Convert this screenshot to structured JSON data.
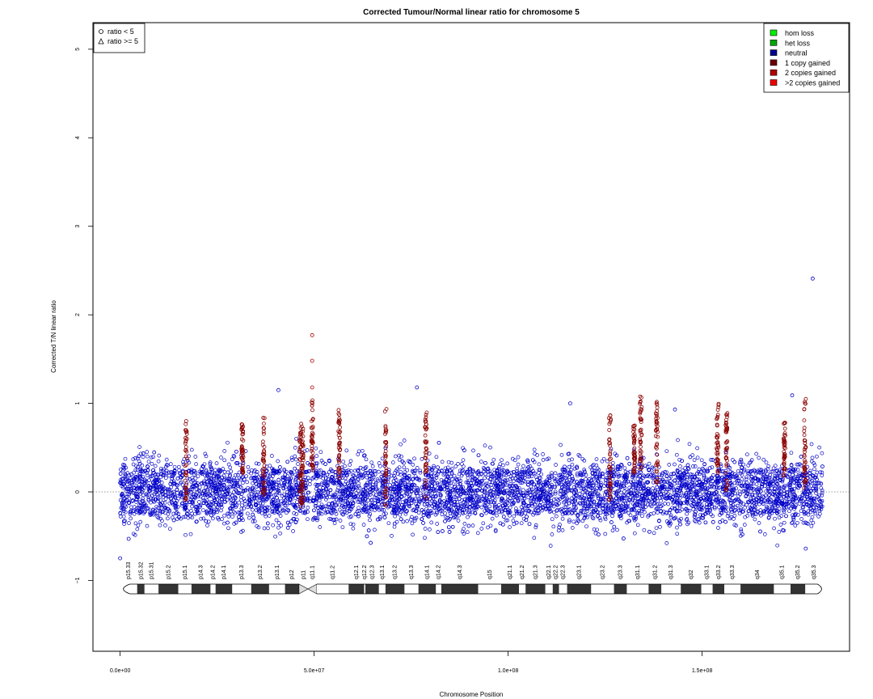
{
  "chart_data": {
    "type": "scatter",
    "title": "Corrected Tumour/Normal linear ratio for chromosome  5",
    "xlabel": "Chromosome Position",
    "ylabel": "Corrected T/N linear ratio",
    "xlim": [
      -7000000,
      188000000
    ],
    "ylim": [
      -1.8,
      5.3
    ],
    "x_ticks": [
      {
        "value": 0,
        "label": "0.0e+00"
      },
      {
        "value": 50000000,
        "label": "5.0e+07"
      },
      {
        "value": 100000000,
        "label": "1.0e+08"
      },
      {
        "value": 150000000,
        "label": "1.5e+08"
      }
    ],
    "y_ticks": [
      {
        "value": -1,
        "label": "−1"
      },
      {
        "value": 0,
        "label": "0"
      },
      {
        "value": 1,
        "label": "1"
      },
      {
        "value": 2,
        "label": "2"
      },
      {
        "value": 3,
        "label": "3"
      },
      {
        "value": 4,
        "label": "4"
      },
      {
        "value": 5,
        "label": "5"
      }
    ],
    "reference_line": {
      "y": 0,
      "style": "dotted"
    },
    "chromosome_length": 181000000,
    "centromere": [
      46500000,
      50500000
    ],
    "noise_band": {
      "low": -0.4,
      "high": 0.45,
      "color": "#0000c8"
    },
    "gap": [
      49000000,
      49600000
    ],
    "gained_regions": [
      {
        "x": 17000000,
        "lo": -0.1,
        "hi": 0.8
      },
      {
        "x": 31500000,
        "lo": 0.2,
        "hi": 0.8
      },
      {
        "x": 37000000,
        "lo": -0.05,
        "hi": 0.85
      },
      {
        "x": 46500000,
        "lo": -0.2,
        "hi": 0.8
      },
      {
        "x": 47000000,
        "lo": -0.15,
        "hi": 0.75
      },
      {
        "x": 49500000,
        "lo": 0.2,
        "hi": 1.05
      },
      {
        "x": 56500000,
        "lo": 0.1,
        "hi": 0.95
      },
      {
        "x": 68500000,
        "lo": -0.2,
        "hi": 0.95
      },
      {
        "x": 78800000,
        "lo": -0.1,
        "hi": 0.9
      },
      {
        "x": 126200000,
        "lo": -0.1,
        "hi": 0.9
      },
      {
        "x": 132500000,
        "lo": 0.2,
        "hi": 0.75
      },
      {
        "x": 134200000,
        "lo": 0.2,
        "hi": 1.1
      },
      {
        "x": 138300000,
        "lo": 0.1,
        "hi": 1.05
      },
      {
        "x": 154000000,
        "lo": 0.2,
        "hi": 1.0
      },
      {
        "x": 156300000,
        "lo": 0.0,
        "hi": 0.95
      },
      {
        "x": 171200000,
        "lo": 0.15,
        "hi": 0.8
      },
      {
        "x": 176500000,
        "lo": 0.0,
        "hi": 1.05
      }
    ],
    "gained_color": "#8b0000",
    "notable_points": [
      {
        "x": 49500000,
        "y": 1.77,
        "class": "1 copy gained"
      },
      {
        "x": 49500000,
        "y": 1.48,
        "class": "1 copy gained"
      },
      {
        "x": 49500000,
        "y": 1.18,
        "class": "1 copy gained"
      },
      {
        "x": 40800000,
        "y": 1.15,
        "class": "neutral"
      },
      {
        "x": 76500000,
        "y": 1.18,
        "class": "neutral"
      },
      {
        "x": 173200000,
        "y": 1.09,
        "class": "neutral"
      },
      {
        "x": 178500000,
        "y": 2.41,
        "class": "neutral"
      },
      {
        "x": 176700000,
        "y": -0.64,
        "class": "neutral"
      },
      {
        "x": 0,
        "y": -0.75,
        "class": "neutral"
      },
      {
        "x": 2200000,
        "y": -0.53,
        "class": "neutral"
      },
      {
        "x": 143000000,
        "y": 0.93,
        "class": "neutral"
      },
      {
        "x": 116000000,
        "y": 1.0,
        "class": "neutral"
      }
    ],
    "bands": [
      {
        "name": "p15.33",
        "start": 0,
        "end": 4400000,
        "stain": "gneg"
      },
      {
        "name": "p15.32",
        "start": 4400000,
        "end": 6300000,
        "stain": "gpos"
      },
      {
        "name": "p15.31",
        "start": 6300000,
        "end": 9900000,
        "stain": "gneg"
      },
      {
        "name": "p15.2",
        "start": 9900000,
        "end": 15000000,
        "stain": "gpos"
      },
      {
        "name": "p15.1",
        "start": 15000000,
        "end": 18400000,
        "stain": "gneg"
      },
      {
        "name": "p14.3",
        "start": 18400000,
        "end": 23300000,
        "stain": "gpos"
      },
      {
        "name": "p14.2",
        "start": 23300000,
        "end": 24600000,
        "stain": "gneg"
      },
      {
        "name": "p14.1",
        "start": 24600000,
        "end": 28900000,
        "stain": "gpos"
      },
      {
        "name": "p13.3",
        "start": 28900000,
        "end": 33800000,
        "stain": "gneg"
      },
      {
        "name": "p13.2",
        "start": 33800000,
        "end": 38400000,
        "stain": "gpos"
      },
      {
        "name": "p13.1",
        "start": 38400000,
        "end": 42500000,
        "stain": "gneg"
      },
      {
        "name": "p12",
        "start": 42500000,
        "end": 46100000,
        "stain": "gpos"
      },
      {
        "name": "p11",
        "start": 46100000,
        "end": 48400000,
        "stain": "acen"
      },
      {
        "name": "q11.1",
        "start": 48400000,
        "end": 50700000,
        "stain": "acen"
      },
      {
        "name": "q11.2",
        "start": 50700000,
        "end": 58900000,
        "stain": "gneg"
      },
      {
        "name": "q12.1",
        "start": 58900000,
        "end": 62900000,
        "stain": "gpos"
      },
      {
        "name": "q12.2",
        "start": 62900000,
        "end": 63200000,
        "stain": "gneg"
      },
      {
        "name": "q12.3",
        "start": 63200000,
        "end": 66700000,
        "stain": "gpos"
      },
      {
        "name": "q13.1",
        "start": 66700000,
        "end": 68400000,
        "stain": "gneg"
      },
      {
        "name": "q13.2",
        "start": 68400000,
        "end": 73300000,
        "stain": "gpos"
      },
      {
        "name": "q13.3",
        "start": 73300000,
        "end": 76900000,
        "stain": "gneg"
      },
      {
        "name": "q14.1",
        "start": 76900000,
        "end": 81400000,
        "stain": "gpos"
      },
      {
        "name": "q14.2",
        "start": 81400000,
        "end": 82800000,
        "stain": "gneg"
      },
      {
        "name": "q14.3",
        "start": 82800000,
        "end": 92300000,
        "stain": "gpos"
      },
      {
        "name": "q15",
        "start": 92300000,
        "end": 98200000,
        "stain": "gneg"
      },
      {
        "name": "q21.1",
        "start": 98200000,
        "end": 102800000,
        "stain": "gpos"
      },
      {
        "name": "q21.2",
        "start": 102800000,
        "end": 104500000,
        "stain": "gneg"
      },
      {
        "name": "q21.3",
        "start": 104500000,
        "end": 109600000,
        "stain": "gpos"
      },
      {
        "name": "q22.1",
        "start": 109600000,
        "end": 111500000,
        "stain": "gneg"
      },
      {
        "name": "q22.2",
        "start": 111500000,
        "end": 113100000,
        "stain": "gpos"
      },
      {
        "name": "q22.3",
        "start": 113100000,
        "end": 115200000,
        "stain": "gneg"
      },
      {
        "name": "q23.1",
        "start": 115200000,
        "end": 121400000,
        "stain": "gpos"
      },
      {
        "name": "q23.2",
        "start": 121400000,
        "end": 127300000,
        "stain": "gneg"
      },
      {
        "name": "q23.3",
        "start": 127300000,
        "end": 130600000,
        "stain": "gpos"
      },
      {
        "name": "q31.1",
        "start": 130600000,
        "end": 136200000,
        "stain": "gneg"
      },
      {
        "name": "q31.2",
        "start": 136200000,
        "end": 139500000,
        "stain": "gpos"
      },
      {
        "name": "q31.3",
        "start": 139500000,
        "end": 144500000,
        "stain": "gneg"
      },
      {
        "name": "q32",
        "start": 144500000,
        "end": 149800000,
        "stain": "gpos"
      },
      {
        "name": "q33.1",
        "start": 149800000,
        "end": 152700000,
        "stain": "gneg"
      },
      {
        "name": "q33.2",
        "start": 152700000,
        "end": 155700000,
        "stain": "gpos"
      },
      {
        "name": "q33.3",
        "start": 155700000,
        "end": 159900000,
        "stain": "gneg"
      },
      {
        "name": "q34",
        "start": 159900000,
        "end": 168500000,
        "stain": "gpos"
      },
      {
        "name": "q35.1",
        "start": 168500000,
        "end": 172800000,
        "stain": "gneg"
      },
      {
        "name": "q35.2",
        "start": 172800000,
        "end": 176600000,
        "stain": "gpos"
      },
      {
        "name": "q35.3",
        "start": 176600000,
        "end": 181000000,
        "stain": "gneg"
      }
    ],
    "shape_legend": {
      "placement": "top-left",
      "entries": [
        {
          "label": "ratio < 5",
          "shape": "circle"
        },
        {
          "label": "ratio >= 5",
          "shape": "triangle"
        }
      ]
    },
    "color_legend": {
      "placement": "top-right",
      "entries": [
        {
          "label": "hom loss",
          "color": "#00ee00"
        },
        {
          "label": "het loss",
          "color": "#00a800"
        },
        {
          "label": "neutral",
          "color": "#00008b"
        },
        {
          "label": "1 copy gained",
          "color": "#6b0000"
        },
        {
          "label": "2 copies gained",
          "color": "#b00000"
        },
        {
          "label": ">2 copies gained",
          "color": "#ee0000"
        }
      ]
    }
  }
}
